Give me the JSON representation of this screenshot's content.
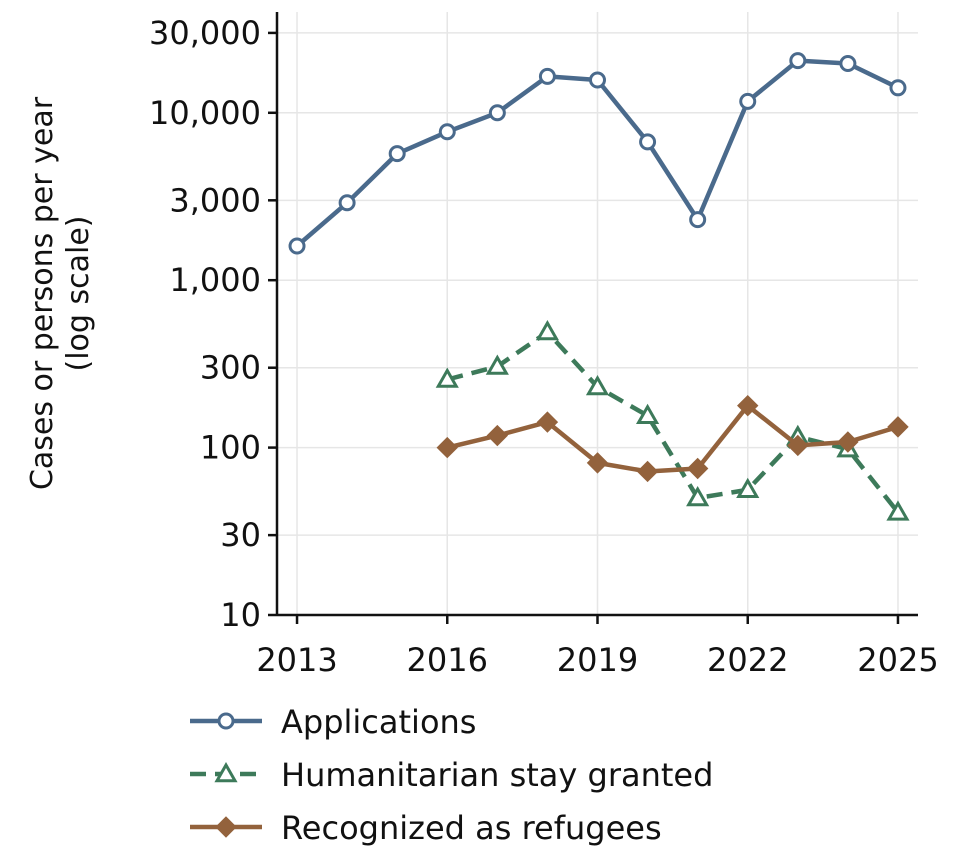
{
  "chart_data": {
    "type": "line",
    "title": "",
    "xlabel": "",
    "ylabel_lines": [
      "Cases or persons per year",
      "(log scale)"
    ],
    "y_scale": "log",
    "ylim": [
      10,
      40000
    ],
    "xlim": [
      2012.6,
      2025.4
    ],
    "x_ticks": [
      2013,
      2016,
      2019,
      2022,
      2025
    ],
    "y_ticks": [
      10,
      30,
      100,
      300,
      1000,
      3000,
      10000,
      30000
    ],
    "y_tick_labels": [
      "10",
      "30",
      "100",
      "300",
      "1,000",
      "3,000",
      "10,000",
      "30,000"
    ],
    "grid": true,
    "legend_position": "bottom",
    "series": [
      {
        "name": "Applications",
        "color": "#4a6a8c",
        "marker": "circle-open",
        "dash": "solid",
        "x": [
          2013,
          2014,
          2015,
          2016,
          2017,
          2018,
          2019,
          2020,
          2021,
          2022,
          2023,
          2024,
          2025
        ],
        "y": [
          1600,
          2900,
          5700,
          7700,
          10000,
          16500,
          15700,
          6700,
          2300,
          11700,
          20500,
          19700,
          14100
        ]
      },
      {
        "name": "Humanitarian stay granted",
        "color": "#3d7a5a",
        "marker": "triangle-open",
        "dash": "dashed",
        "x": [
          2016,
          2017,
          2018,
          2019,
          2020,
          2021,
          2022,
          2023,
          2024,
          2025
        ],
        "y": [
          255,
          305,
          490,
          230,
          155,
          50,
          56,
          116,
          98,
          41
        ]
      },
      {
        "name": "Recognized as refugees",
        "color": "#93623c",
        "marker": "diamond",
        "dash": "solid",
        "x": [
          2016,
          2017,
          2018,
          2019,
          2020,
          2021,
          2022,
          2023,
          2024,
          2025
        ],
        "y": [
          100,
          118,
          142,
          81,
          72,
          75,
          178,
          103,
          108,
          133
        ]
      }
    ]
  }
}
